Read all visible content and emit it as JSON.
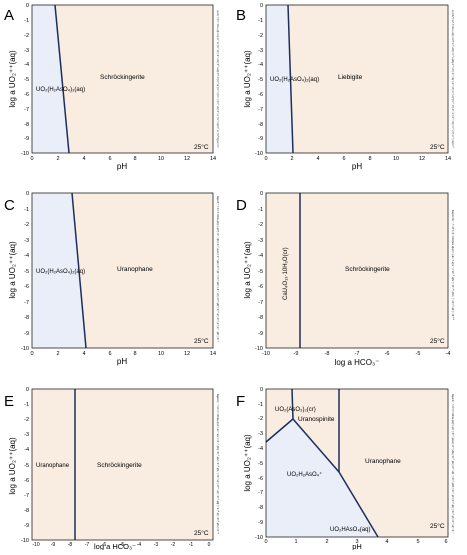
{
  "figure": {
    "panels": [
      {
        "letter": "A",
        "xlabel": "pH",
        "ylabel": "log a UO₂⁺⁺(aq)",
        "xticks": [
          "0",
          "2",
          "4",
          "6",
          "8",
          "10",
          "12",
          "14"
        ],
        "yticks": [
          "0",
          "-1",
          "-2",
          "-3",
          "-4",
          "-5",
          "-6",
          "-7",
          "-8",
          "-9",
          "-10"
        ],
        "temperature": "25°C",
        "regions": [
          {
            "label": "UO₂(H₂AsO₄)₂(aq)",
            "color": "#e9eef8"
          },
          {
            "label": "Schröckingerite",
            "color": "#f9ece0"
          }
        ],
        "side_text": "Diagram UO₂⁺⁺, T = 25 °C, P = 1.013 bars, a[H₂O] = 1, a[Na⁺] = 10⁻²·⁹⁵, a[Ca⁺⁺] = 10⁻²·⁷⁵, a[SO₄⁻⁻] = 10⁻²·⁵³, a[HCO₃⁻] = 10⁻⁸·⁵⁷, a[H₃AsO₄] = 10⁻⁴·⁰², a[Cl⁻] = 10⁻³·¹⁸, a[Mg⁺⁺] = 10⁻³·⁴⁸, a[K⁺] = 10⁻³·⁸², a[F⁻] = 10⁻⁴·⁴⁵, a[NO₃⁻] = 10⁻⁴·⁹², a[Sr⁺⁺] = 10⁻⁵·⁴¹, a[SiO₂] = 10⁻³·⁶⁷, a[Al⁺⁺⁺] = 10⁻¹⁰, CO₂(g) fugacity = 10⁻³·⁴"
      },
      {
        "letter": "B",
        "xlabel": "pH",
        "ylabel": "log a UO₂⁺⁺(aq)",
        "xticks": [
          "0",
          "2",
          "4",
          "6",
          "8",
          "10",
          "12",
          "14"
        ],
        "yticks": [
          "0",
          "-1",
          "-2",
          "-3",
          "-4",
          "-5",
          "-6",
          "-7",
          "-8",
          "-9",
          "-10"
        ],
        "temperature": "25°C",
        "regions": [
          {
            "label": "UO₂(H₂AsO₄)₂(aq)",
            "color": "#e9eef8"
          },
          {
            "label": "Liebigite",
            "color": "#f9ece0"
          }
        ],
        "side_text": "Diagram UO₂⁺⁺, T = 25 °C, P = 1.013 bars, a[H₂O] = 1, a[Ca⁺⁺] = 10⁻²·⁷⁵, a[HCO₃⁻] = 10⁻²·⁵⁷, a[H₃AsO₄] = 10⁻⁴·⁰², a[Na⁺] = 10⁻²·⁹⁵, a[SO₄⁻⁻] = 10⁻²·⁵³, a[Cl⁻] = 10⁻³·¹⁸, a[Mg⁺⁺] = 10⁻³·⁴⁸, a[K⁺] = 10⁻³·⁸², a[F⁻] = 10⁻⁴·⁴⁵, a[NO₃⁻] = 10⁻⁴·⁹², a[Sr⁺⁺] = 10⁻⁵·⁴¹, a[SiO₂] = 10⁻³·⁶⁷"
      },
      {
        "letter": "C",
        "xlabel": "pH",
        "ylabel": "log a UO₂⁺⁺(aq)",
        "xticks": [
          "0",
          "2",
          "4",
          "6",
          "8",
          "10",
          "12",
          "14"
        ],
        "yticks": [
          "0",
          "-1",
          "-2",
          "-3",
          "-4",
          "-5",
          "-6",
          "-7",
          "-8",
          "-9",
          "-10"
        ],
        "temperature": "25°C",
        "regions": [
          {
            "label": "UO₂(H₂AsO₄)₂(aq)",
            "color": "#e9eef8"
          },
          {
            "label": "Uranophane",
            "color": "#f9ece0"
          }
        ],
        "side_text": "Diagram UO₂⁺⁺, T = 25 °C, P = 1.013 bars, a[H₂O] = 1, a[Ca⁺⁺] = 10⁻²·⁷⁵, a[SiO₂] = 10⁻³·⁶⁷, a[H₃AsO₄] = 10⁻⁴·⁰², a[Na⁺] = 10⁻²·⁹⁵, a[SO₄⁻⁻] = 10⁻²·⁵³, a[HCO₃⁻] = 10⁻²·⁵⁷, a[Cl⁻] = 10⁻³·¹⁸, a[Mg⁺⁺] = 10⁻³·⁴⁸, a[K⁺] = 10⁻³·⁸², a[F⁻] = 10⁻⁴·⁴⁵, a[NO₃⁻] = 10⁻⁴·⁹²"
      },
      {
        "letter": "D",
        "xlabel": "log a HCO₃⁻",
        "ylabel": "log a UO₂⁺⁺(aq)",
        "xticks": [
          "-10",
          "-9",
          "-8",
          "-7",
          "-6",
          "-5",
          "-4"
        ],
        "yticks": [
          "0",
          "-1",
          "-2",
          "-3",
          "-4",
          "-5",
          "-6",
          "-7",
          "-8",
          "-9",
          "-10"
        ],
        "temperature": "25°C",
        "regions": [
          {
            "label": "CaU₄O₁₃·10H₂O(cr)",
            "color": "#f9ece0"
          },
          {
            "label": "Schröckingerite",
            "color": "#f9ece0"
          }
        ],
        "side_text": "Diagram UO₂⁺⁺, T = 25 °C, P = 1.013 bars, a[H₂O] = 1, pH = 7, a[Ca⁺⁺] = 10⁻²·⁷⁵, a[Na⁺] = 10⁻²·⁹⁵, a[SO₄⁻⁻] = 10⁻²·⁵³, a[F⁻] = 10⁻⁴·⁴⁵"
      },
      {
        "letter": "E",
        "xlabel": "log a HCO₃⁻",
        "ylabel": "log a UO₂⁺⁺(aq)",
        "xticks": [
          "-10",
          "-9",
          "-8",
          "-7",
          "-6",
          "-5",
          "-4",
          "-3",
          "-2",
          "-1",
          "0"
        ],
        "yticks": [
          "0",
          "-1",
          "-2",
          "-3",
          "-4",
          "-5",
          "-6",
          "-7",
          "-8",
          "-9",
          "-10"
        ],
        "temperature": "25°C",
        "regions": [
          {
            "label": "Uranophane",
            "color": "#f9ece0"
          },
          {
            "label": "Schröckingerite",
            "color": "#f9ece0"
          }
        ],
        "side_text": "Diagram UO₂⁺⁺, T = 25 °C, P = 1.013 bars, a[H₂O] = 1, pH = 7, a[Ca⁺⁺] = 10⁻²·⁷⁵, a[SiO₂] = 10⁻³·⁶⁷, a[Na⁺] = 10⁻²·⁹⁵, a[SO₄⁻⁻] = 10⁻²·⁵³, a[F⁻] = 10⁻⁴·⁴⁵, a[Cl⁻] = 10⁻³·¹⁸, a[Mg⁺⁺] = 10⁻³·⁴⁸, a[K⁺] = 10⁻³·⁸², a[NO₃⁻] = 10⁻⁴·⁹²"
      },
      {
        "letter": "F",
        "xlabel": "pH",
        "ylabel": "log a UO₂⁺⁺(aq)",
        "xticks": [
          "0",
          "1",
          "2",
          "3",
          "4",
          "5",
          "6"
        ],
        "yticks": [
          "0",
          "-1",
          "-2",
          "-3",
          "-4",
          "-5",
          "-6",
          "-7",
          "-8",
          "-9",
          "-10"
        ],
        "temperature": "25°C",
        "regions": [
          {
            "label": "UO₂(AsO₃)₂(cr)",
            "color": "#f9ece0"
          },
          {
            "label": "Uranospinite",
            "color": "#f9ece0"
          },
          {
            "label": "UO₂H₂AsO₄⁺",
            "color": "#e9eef8"
          },
          {
            "label": "Uranophane",
            "color": "#f9ece0"
          },
          {
            "label": "UO₂HAsO₄(aq)",
            "color": "#e9eef8"
          }
        ],
        "side_text": "Diagram UO₂⁺⁺, T = 25 °C, P = 1.013 bars, a[H₂O] = 1, a[Ca⁺⁺] = 10⁻²·⁷⁵, a[H₃AsO₄] = 10⁻⁴·⁰², a[SiO₂] = 10⁻³·⁶⁷, a[Na⁺] = 10⁻²·⁹⁵, a[SO₄⁻⁻] = 10⁻²·⁵³, a[HCO₃⁻] = 10⁻²·⁵⁷, a[Cl⁻] = 10⁻³·¹⁸, a[Mg⁺⁺] = 10⁻³·⁴⁸, a[K⁺] = 10⁻³·⁸², a[F⁻] = 10⁻⁴·⁴⁵"
      }
    ],
    "colors": {
      "aqueous_field": "#e9eef8",
      "mineral_field": "#f9ece0",
      "boundary": "#1c2f5e",
      "text": "#111111"
    }
  }
}
